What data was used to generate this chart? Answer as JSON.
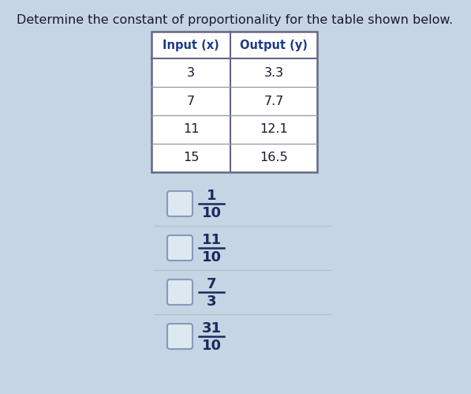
{
  "title": "Determine the constant of proportionality for the table shown below.",
  "title_fontsize": 11.5,
  "title_color": "#1a1a2e",
  "background_color": "#c5d5e4",
  "table_headers": [
    "Input (x)",
    "Output (y)"
  ],
  "table_rows": [
    [
      "3",
      "3.3"
    ],
    [
      "7",
      "7.7"
    ],
    [
      "11",
      "12.1"
    ],
    [
      "15",
      "16.5"
    ]
  ],
  "options": [
    {
      "numerator": "1",
      "denominator": "10"
    },
    {
      "numerator": "11",
      "denominator": "10"
    },
    {
      "numerator": "7",
      "denominator": "3"
    },
    {
      "numerator": "31",
      "denominator": "10"
    }
  ],
  "header_fontsize": 10.5,
  "cell_fontsize": 11.5,
  "option_fontsize": 13,
  "table_header_color": "#1a3a8a",
  "table_text_color": "#1a1a2e",
  "option_text_color": "#1a2a5e",
  "checkbox_edge_color": "#8899bb",
  "checkbox_face_color": "#dde8f0",
  "divider_color": "#b0c0d0",
  "table_border_color": "#666688",
  "table_line_color": "#8899aa"
}
